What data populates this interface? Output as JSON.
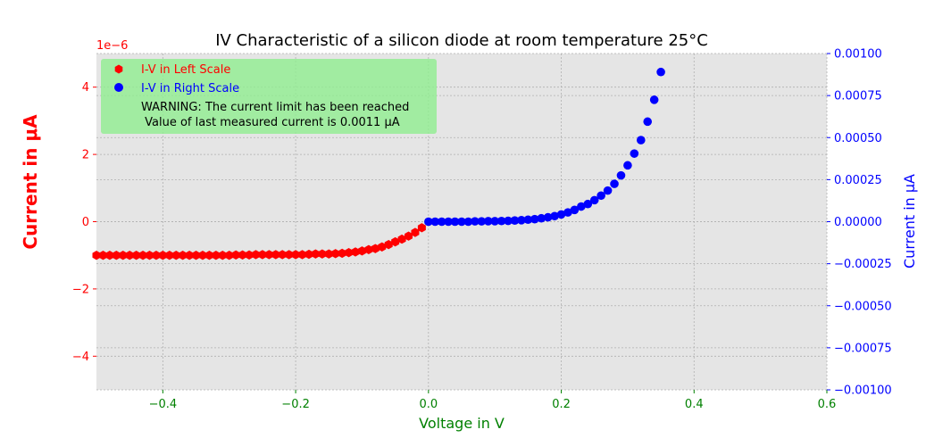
{
  "chart_data": {
    "type": "scatter",
    "title": "IV Characteristic of a silicon diode at room temperature 25°C",
    "xlabel": "Voltage in V",
    "ylabel_left": "Current in μA",
    "ylabel_right": "Current in μA",
    "offset_label_left": "1e−6",
    "xlim": [
      -0.5,
      0.6
    ],
    "ylim_left": [
      -5e-06,
      5e-06
    ],
    "ylim_right": [
      -0.001,
      0.001
    ],
    "x_ticks": [
      -0.4,
      -0.2,
      0.0,
      0.2,
      0.4,
      0.6
    ],
    "x_tick_labels": [
      "−0.4",
      "−0.2",
      "0.0",
      "0.2",
      "0.4",
      "0.6"
    ],
    "y_left_ticks": [
      -4,
      -2,
      0,
      2,
      4
    ],
    "y_left_tick_labels": [
      "−4",
      "−2",
      "0",
      "2",
      "4"
    ],
    "y_right_ticks": [
      -0.001,
      -0.00075,
      -0.0005,
      -0.00025,
      0,
      0.00025,
      0.0005,
      0.00075,
      0.001
    ],
    "y_right_tick_labels": [
      "−0.00100",
      "−0.00075",
      "−0.00050",
      "−0.00025",
      "0.00000",
      "0.00025",
      "0.00050",
      "0.00075",
      "0.00100"
    ],
    "grid": true,
    "background": "#e5e5e5",
    "colors": {
      "left": "#ff0000",
      "right": "#0000ff",
      "x_axis": "#008000",
      "legend_bg": "#90ee90"
    },
    "legend": {
      "placement": "top-left",
      "entries": [
        {
          "label": "I-V in Left Scale",
          "color": "#ff0000",
          "marker": "hexagon"
        },
        {
          "label": "I-V in Right Scale",
          "color": "#0000ff",
          "marker": "circle"
        }
      ],
      "warning_line1": "WARNING: The current limit has been reached",
      "warning_line2": " Value of last measured current is 0.0011 μA"
    },
    "series": [
      {
        "name": "I-V in Left Scale",
        "axis": "left",
        "marker": "hexagon",
        "x": [
          -0.5,
          -0.49,
          -0.48,
          -0.47,
          -0.46,
          -0.45,
          -0.44,
          -0.43,
          -0.42,
          -0.41,
          -0.4,
          -0.39,
          -0.38,
          -0.37,
          -0.36,
          -0.35,
          -0.34,
          -0.33,
          -0.32,
          -0.31,
          -0.3,
          -0.29,
          -0.28,
          -0.27,
          -0.26,
          -0.25,
          -0.24,
          -0.23,
          -0.22,
          -0.21,
          -0.2,
          -0.19,
          -0.18,
          -0.17,
          -0.16,
          -0.15,
          -0.14,
          -0.13,
          -0.12,
          -0.11,
          -0.1,
          -0.09,
          -0.08,
          -0.07,
          -0.06,
          -0.05,
          -0.04,
          -0.03,
          -0.02,
          -0.01
        ],
        "y": [
          -1e-06,
          -1e-06,
          -1e-06,
          -1e-06,
          -1e-06,
          -1e-06,
          -1e-06,
          -1e-06,
          -1e-06,
          -1e-06,
          -1e-06,
          -1e-06,
          -1e-06,
          -1e-06,
          -1e-06,
          -1e-06,
          -1e-06,
          -1e-06,
          -1e-06,
          -1e-06,
          -1e-06,
          -9.9e-07,
          -9.9e-07,
          -9.9e-07,
          -9.8e-07,
          -9.8e-07,
          -9.8e-07,
          -9.8e-07,
          -9.8e-07,
          -9.8e-07,
          -9.8e-07,
          -9.8e-07,
          -9.7e-07,
          -9.6e-07,
          -9.6e-07,
          -9.6e-07,
          -9.5e-07,
          -9.4e-07,
          -9.2e-07,
          -9e-07,
          -8.7e-07,
          -8.3e-07,
          -8e-07,
          -7.5e-07,
          -6.8e-07,
          -6e-07,
          -5.2e-07,
          -4.3e-07,
          -3.2e-07,
          -1.8e-07
        ]
      },
      {
        "name": "I-V in Right Scale",
        "axis": "right",
        "marker": "circle",
        "x": [
          0,
          0.01,
          0.02,
          0.03,
          0.04,
          0.05,
          0.06,
          0.07,
          0.08,
          0.09,
          0.1,
          0.11,
          0.12,
          0.13,
          0.14,
          0.15,
          0.16,
          0.17,
          0.18,
          0.19,
          0.2,
          0.21,
          0.22,
          0.23,
          0.24,
          0.25,
          0.26,
          0.27,
          0.28,
          0.29,
          0.3,
          0.31,
          0.32,
          0.33,
          0.34,
          0.35
        ],
        "y": [
          0,
          0,
          0,
          0,
          0,
          0,
          0,
          2e-06,
          2e-06,
          3e-06,
          3e-06,
          4e-06,
          5e-06,
          7e-06,
          9e-06,
          1.2e-05,
          1.5e-05,
          2e-05,
          2.6e-05,
          3.3e-05,
          4.3e-05,
          5.5e-05,
          7e-05,
          9e-05,
          0.000105,
          0.000128,
          0.000155,
          0.000185,
          0.000225,
          0.000275,
          0.000335,
          0.000405,
          0.000485,
          0.000595,
          0.000725,
          0.00089
        ]
      }
    ]
  }
}
